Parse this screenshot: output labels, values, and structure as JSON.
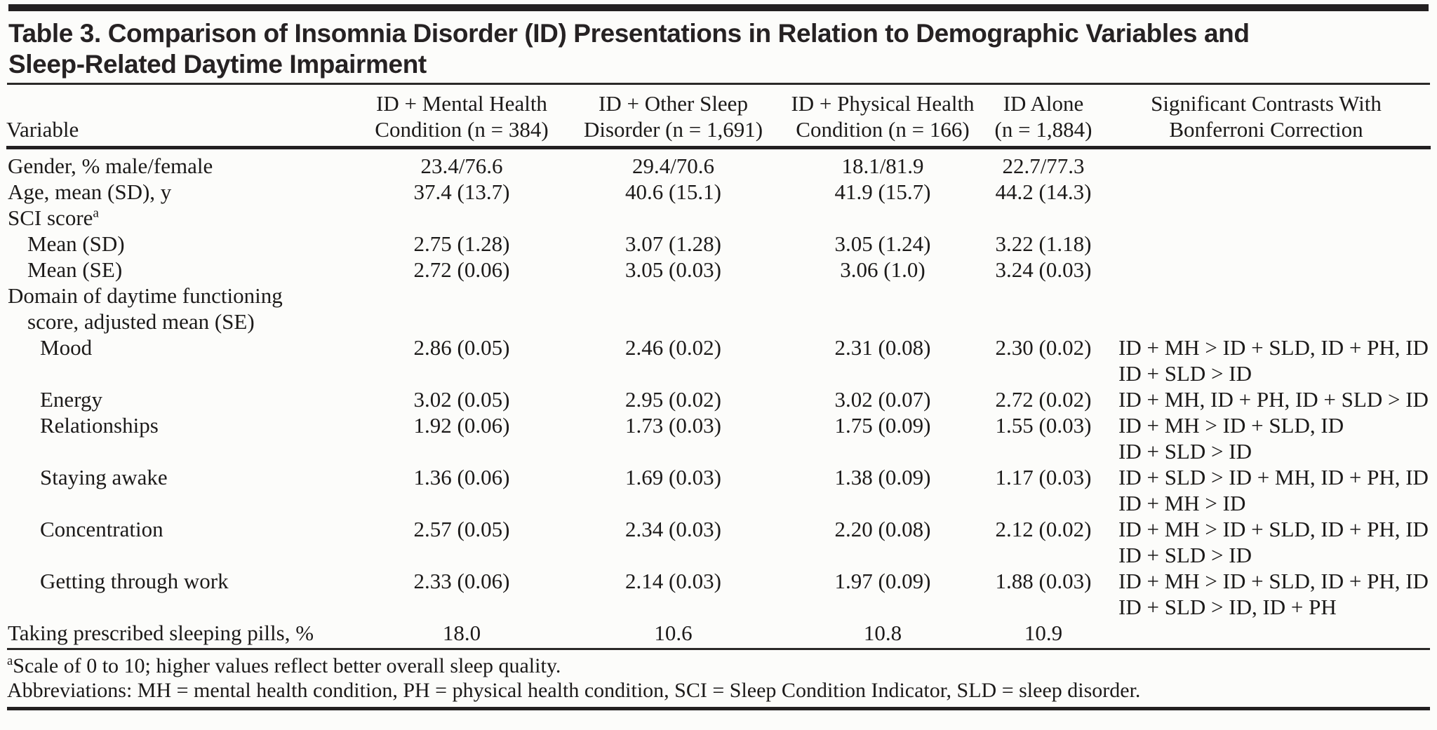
{
  "title": {
    "line1": "Table 3. Comparison of Insomnia Disorder (ID) Presentations in Relation to Demographic Variables and",
    "line2": "Sleep-Related Daytime Impairment"
  },
  "colors": {
    "background": "#fcfcfa",
    "text": "#1c1a19",
    "rule": "#232021"
  },
  "table": {
    "columns": [
      {
        "line1": "",
        "line2": "Variable"
      },
      {
        "line1": "ID + Mental Health",
        "line2": "Condition (n = 384)"
      },
      {
        "line1": "ID + Other Sleep",
        "line2": "Disorder (n = 1,691)"
      },
      {
        "line1": "ID + Physical Health",
        "line2": "Condition (n = 166)"
      },
      {
        "line1": "ID Alone",
        "line2": "(n = 1,884)"
      },
      {
        "line1": "Significant Contrasts With",
        "line2": "Bonferroni Correction"
      }
    ],
    "rows": [
      {
        "label": "Gender, % male/female",
        "indent": 0,
        "values": [
          "23.4/76.6",
          "29.4/70.6",
          "18.1/81.9",
          "22.7/77.3"
        ],
        "contrasts": []
      },
      {
        "label": "Age, mean (SD), y",
        "indent": 0,
        "values": [
          "37.4 (13.7)",
          "40.6 (15.1)",
          "41.9 (15.7)",
          "44.2 (14.3)"
        ],
        "contrasts": []
      },
      {
        "label": "SCI score",
        "sup": "a",
        "indent": 0,
        "values": [
          "",
          "",
          "",
          ""
        ],
        "contrasts": []
      },
      {
        "label": "Mean (SD)",
        "indent": 1,
        "values": [
          "2.75 (1.28)",
          "3.07 (1.28)",
          "3.05 (1.24)",
          "3.22 (1.18)"
        ],
        "contrasts": []
      },
      {
        "label": "Mean (SE)",
        "indent": 1,
        "values": [
          "2.72 (0.06)",
          "3.05 (0.03)",
          "3.06 (1.0)",
          "3.24 (0.03)"
        ],
        "contrasts": []
      },
      {
        "label": "Domain of daytime functioning",
        "label2": "score, adjusted mean (SE)",
        "indent": 0,
        "values": [
          "",
          "",
          "",
          ""
        ],
        "contrasts": []
      },
      {
        "label": "Mood",
        "indent": 2,
        "values": [
          "2.86 (0.05)",
          "2.46 (0.02)",
          "2.31 (0.08)",
          "2.30 (0.02)"
        ],
        "contrasts": [
          "ID + MH > ID + SLD, ID + PH, ID",
          "ID + SLD > ID"
        ]
      },
      {
        "label": "Energy",
        "indent": 2,
        "values": [
          "3.02 (0.05)",
          "2.95 (0.02)",
          "3.02 (0.07)",
          "2.72 (0.02)"
        ],
        "contrasts": [
          "ID + MH, ID + PH, ID + SLD > ID"
        ]
      },
      {
        "label": "Relationships",
        "indent": 2,
        "values": [
          "1.92 (0.06)",
          "1.73 (0.03)",
          "1.75 (0.09)",
          "1.55 (0.03)"
        ],
        "contrasts": [
          "ID + MH > ID + SLD, ID",
          "ID + SLD > ID"
        ]
      },
      {
        "label": "Staying awake",
        "indent": 2,
        "values": [
          "1.36 (0.06)",
          "1.69 (0.03)",
          "1.38 (0.09)",
          "1.17 (0.03)"
        ],
        "contrasts": [
          "ID + SLD > ID + MH, ID + PH, ID",
          "ID + MH > ID"
        ]
      },
      {
        "label": "Concentration",
        "indent": 2,
        "values": [
          "2.57 (0.05)",
          "2.34 (0.03)",
          "2.20 (0.08)",
          "2.12 (0.02)"
        ],
        "contrasts": [
          "ID + MH > ID + SLD, ID + PH, ID",
          "ID + SLD > ID"
        ]
      },
      {
        "label": "Getting through work",
        "indent": 2,
        "values": [
          "2.33 (0.06)",
          "2.14 (0.03)",
          "1.97 (0.09)",
          "1.88 (0.03)"
        ],
        "contrasts": [
          "ID + MH > ID + SLD, ID + PH, ID",
          "ID + SLD > ID, ID + PH"
        ]
      },
      {
        "label": "Taking prescribed sleeping pills, %",
        "indent": 0,
        "values": [
          "18.0",
          "10.6",
          "10.8",
          "10.9"
        ],
        "contrasts": []
      }
    ]
  },
  "footnotes": {
    "marker": "a",
    "line1": "Scale of 0 to 10; higher values reflect better overall sleep quality.",
    "line2": "Abbreviations: MH = mental health condition, PH = physical health condition, SCI = Sleep Condition Indicator, SLD = sleep disorder."
  }
}
